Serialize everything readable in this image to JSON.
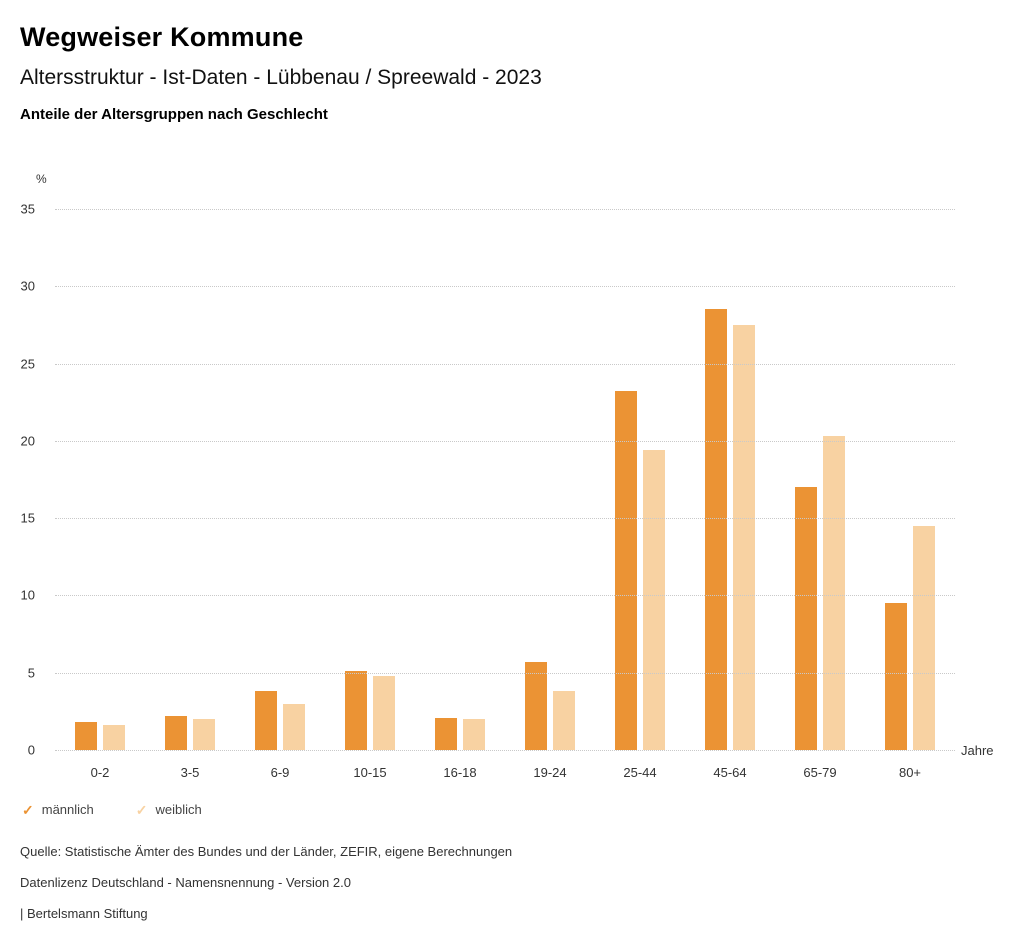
{
  "header": {
    "title": "Wegweiser Kommune",
    "subtitle": "Altersstruktur - Ist-Daten - Lübbenau / Spreewald - 2023",
    "chart_subtitle": "Anteile der Altersgruppen nach Geschlecht"
  },
  "chart_data": {
    "type": "bar",
    "title": "Anteile der Altersgruppen nach Geschlecht",
    "categories": [
      "0-2",
      "3-5",
      "6-9",
      "10-15",
      "16-18",
      "19-24",
      "25-44",
      "45-64",
      "65-79",
      "80+"
    ],
    "series": [
      {
        "name": "männlich",
        "color": "#EB9334",
        "values": [
          1.8,
          2.2,
          3.8,
          5.1,
          2.1,
          5.7,
          23.2,
          28.5,
          17.0,
          9.5
        ]
      },
      {
        "name": "weiblich",
        "color": "#F8D2A2",
        "values": [
          1.6,
          2.0,
          3.0,
          4.8,
          2.0,
          3.8,
          19.4,
          27.5,
          20.3,
          14.5
        ]
      }
    ],
    "ylabel": "%",
    "xlabel": "Jahre",
    "ylim": [
      0,
      35
    ],
    "yticks": [
      0,
      5,
      10,
      15,
      20,
      25,
      30,
      35
    ],
    "grid": true,
    "legend_position": "bottom",
    "legend_marker": "check"
  },
  "footer": {
    "source": "Quelle: Statistische Ämter des Bundes und der Länder, ZEFIR, eigene Berechnungen",
    "license": "Datenlizenz Deutschland - Namensnennung - Version 2.0",
    "attribution": "| Bertelsmann Stiftung"
  }
}
